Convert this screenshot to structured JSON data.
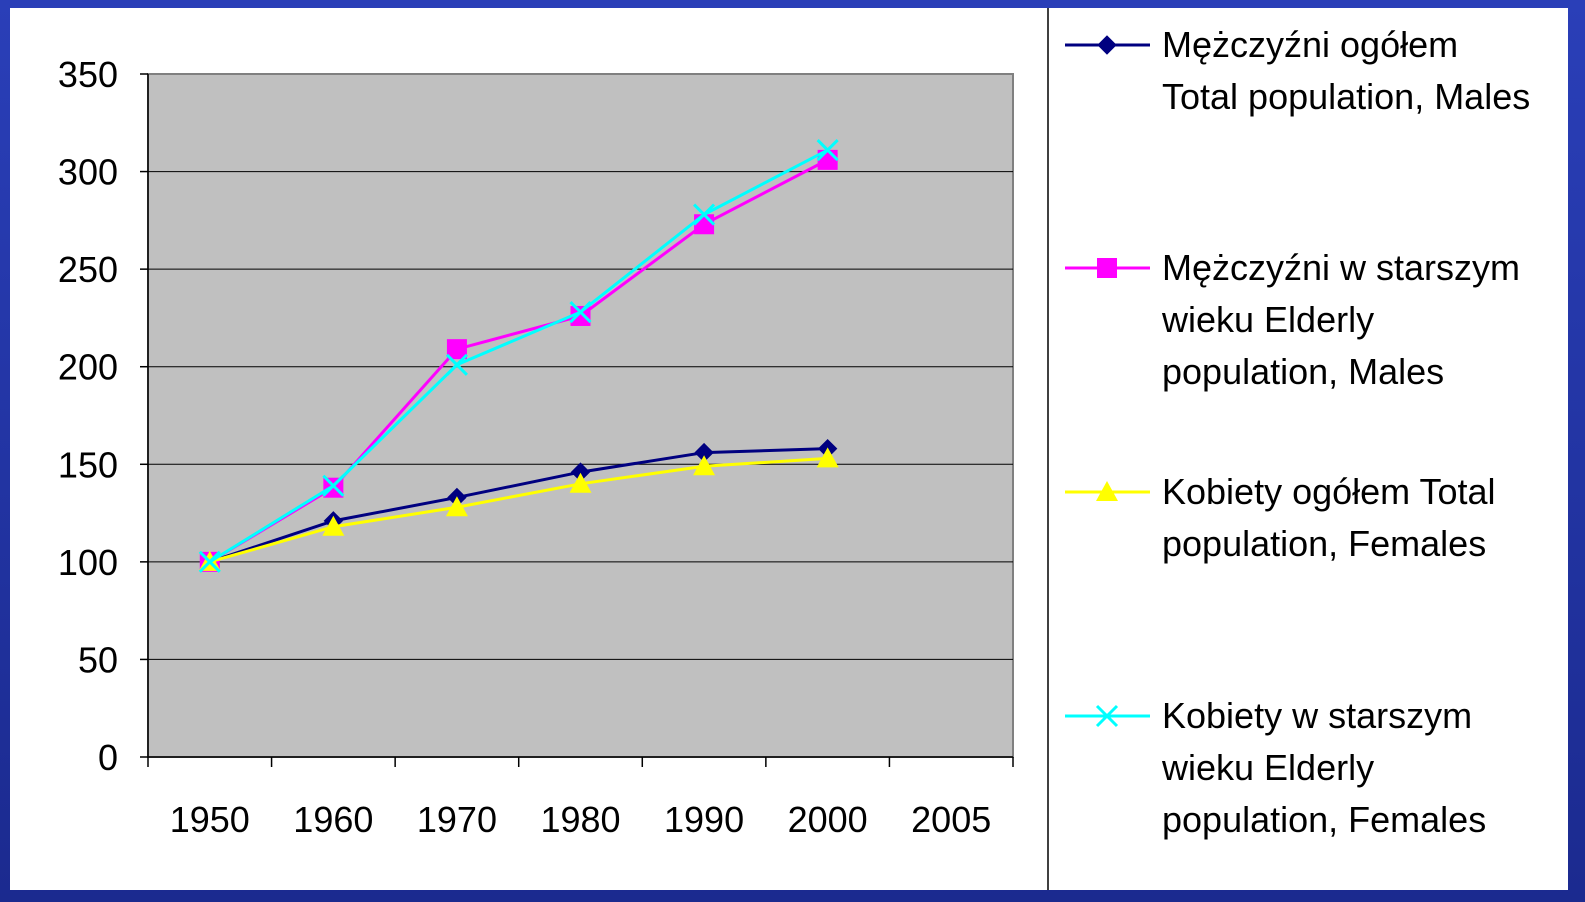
{
  "chart_data": {
    "type": "line",
    "categories": [
      "1950",
      "1960",
      "1970",
      "1980",
      "1990",
      "2000",
      "2005"
    ],
    "ylim": [
      0,
      350
    ],
    "yticks": [
      0,
      50,
      100,
      150,
      200,
      250,
      300,
      350
    ],
    "grid": true,
    "legend": "right",
    "series": [
      {
        "name": "Mężczyźni ogółem Total population, Males",
        "color": "#000080",
        "marker": "diamond",
        "values": [
          100,
          121,
          133,
          146,
          156,
          158,
          null
        ]
      },
      {
        "name": "Mężczyźni w starszym wieku Elderly population, Males",
        "color": "#ff00ff",
        "marker": "square",
        "values": [
          100,
          138,
          209,
          226,
          273,
          306,
          null
        ]
      },
      {
        "name": "Kobiety ogółem Total population, Females",
        "color": "#ffff00",
        "marker": "triangle",
        "values": [
          100,
          118,
          128,
          140,
          149,
          153,
          null
        ]
      },
      {
        "name": "Kobiety w starszym wieku Elderly population, Females",
        "color": "#00ffff",
        "marker": "x",
        "values": [
          100,
          139,
          201,
          228,
          278,
          311,
          null
        ]
      }
    ]
  }
}
